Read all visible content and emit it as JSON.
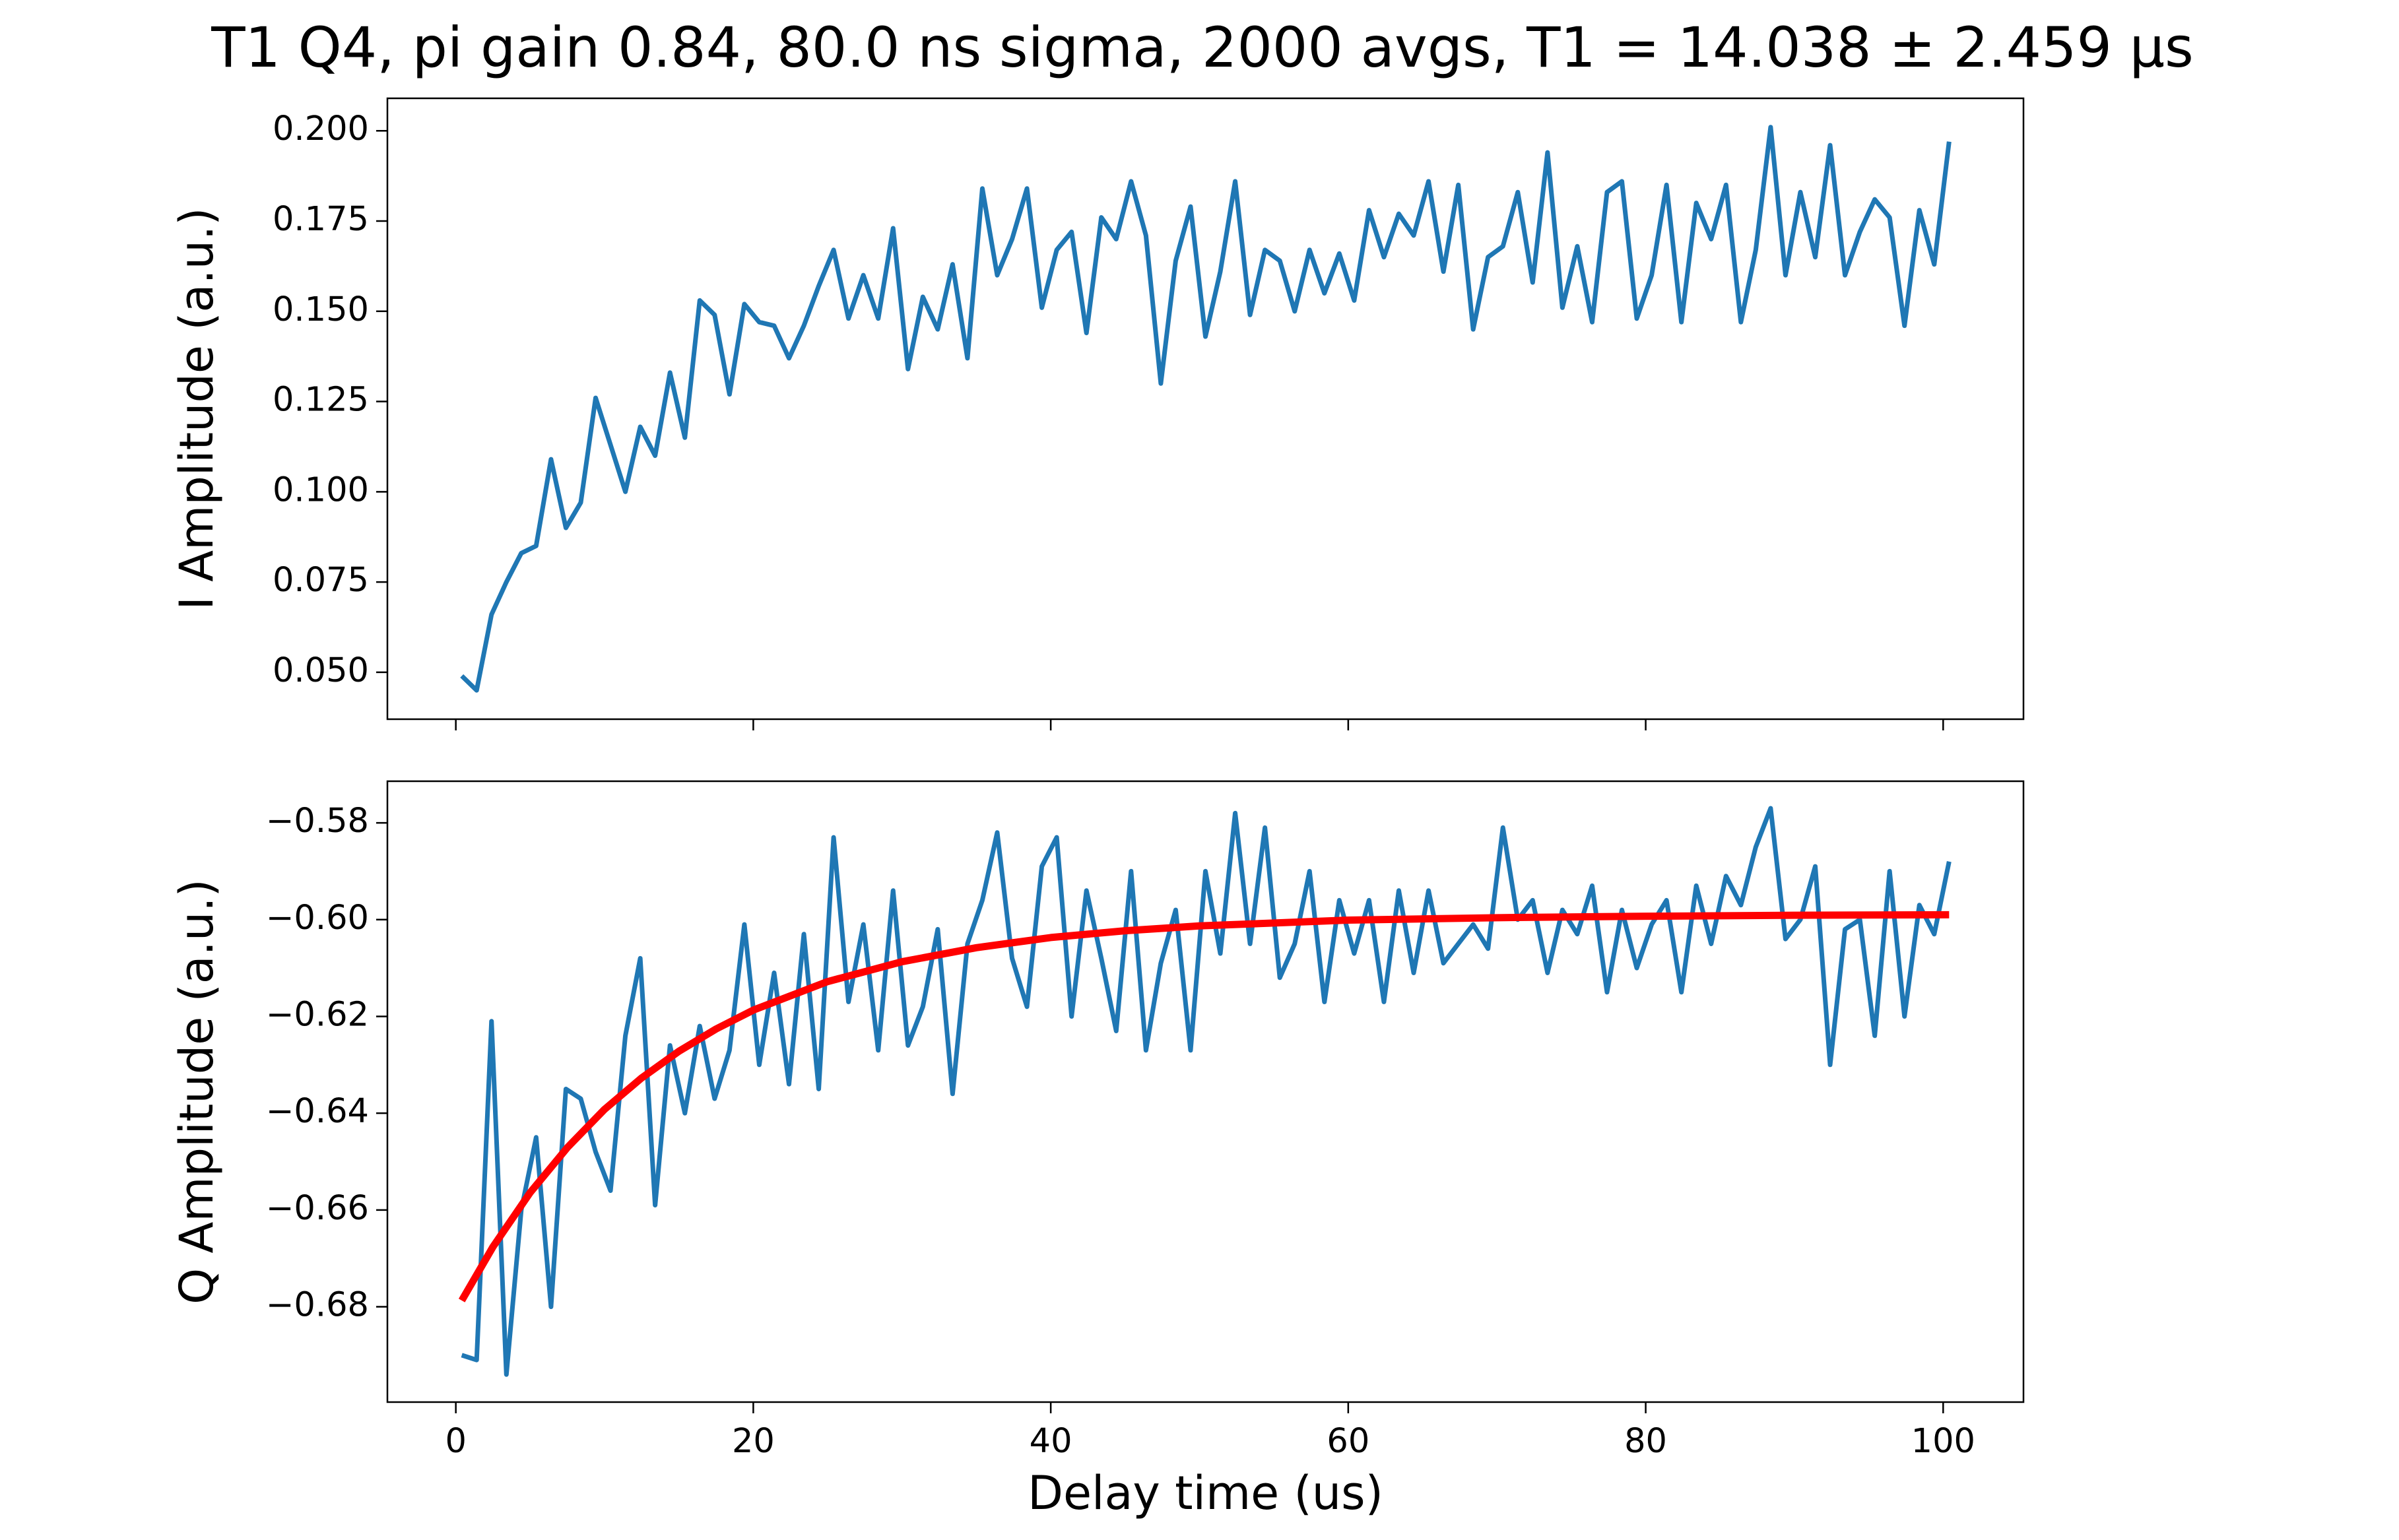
{
  "title": "T1 Q4, pi gain 0.84, 80.0 ns sigma, 2000 avgs, T1 = 14.038 ± 2.459 µs",
  "chart_data": [
    {
      "type": "line",
      "ylabel": "I Amplitude (a.u.)",
      "show_xtick_labels": false,
      "xlim": [
        -4.6,
        105.4
      ],
      "ylim": [
        0.037,
        0.209
      ],
      "xticks": [
        0,
        20,
        40,
        60,
        80,
        100
      ],
      "yticks": [
        {
          "value": 0.05,
          "label": "0.050"
        },
        {
          "value": 0.075,
          "label": "0.075"
        },
        {
          "value": 0.1,
          "label": "0.100"
        },
        {
          "value": 0.125,
          "label": "0.125"
        },
        {
          "value": 0.15,
          "label": "0.150"
        },
        {
          "value": 0.175,
          "label": "0.175"
        },
        {
          "value": 0.2,
          "label": "0.200"
        }
      ],
      "x": [
        0.4,
        1.4,
        2.4,
        3.4,
        4.4,
        5.4,
        6.4,
        7.4,
        8.4,
        9.4,
        10.4,
        11.4,
        12.4,
        13.4,
        14.4,
        15.4,
        16.4,
        17.4,
        18.4,
        19.4,
        20.4,
        21.4,
        22.4,
        23.4,
        24.4,
        25.4,
        26.4,
        27.4,
        28.4,
        29.4,
        30.4,
        31.4,
        32.4,
        33.4,
        34.4,
        35.4,
        36.4,
        37.4,
        38.4,
        39.4,
        40.4,
        41.4,
        42.4,
        43.4,
        44.4,
        45.4,
        46.4,
        47.4,
        48.4,
        49.4,
        50.4,
        51.4,
        52.4,
        53.4,
        54.4,
        55.4,
        56.4,
        57.4,
        58.4,
        59.4,
        60.4,
        61.4,
        62.4,
        63.4,
        64.4,
        65.4,
        66.4,
        67.4,
        68.4,
        69.4,
        70.4,
        71.4,
        72.4,
        73.4,
        74.4,
        75.4,
        76.4,
        77.4,
        78.4,
        79.4,
        80.4,
        81.4,
        82.4,
        83.4,
        84.4,
        85.4,
        86.4,
        87.4,
        88.4,
        89.4,
        90.4,
        91.4,
        92.4,
        93.4,
        94.4,
        95.4,
        96.4,
        97.4,
        98.4,
        99.4,
        100.4
      ],
      "series": [
        {
          "color": "#1f77b4",
          "width": 7,
          "values": [
            0.049,
            0.045,
            0.066,
            0.075,
            0.083,
            0.085,
            0.109,
            0.09,
            0.097,
            0.126,
            0.113,
            0.1,
            0.118,
            0.11,
            0.133,
            0.115,
            0.153,
            0.149,
            0.127,
            0.152,
            0.147,
            0.146,
            0.137,
            0.146,
            0.157,
            0.167,
            0.148,
            0.16,
            0.148,
            0.173,
            0.134,
            0.154,
            0.145,
            0.163,
            0.137,
            0.184,
            0.16,
            0.17,
            0.184,
            0.151,
            0.167,
            0.172,
            0.144,
            0.176,
            0.17,
            0.186,
            0.171,
            0.13,
            0.164,
            0.179,
            0.143,
            0.161,
            0.186,
            0.149,
            0.167,
            0.164,
            0.15,
            0.167,
            0.155,
            0.166,
            0.153,
            0.178,
            0.165,
            0.177,
            0.171,
            0.186,
            0.161,
            0.185,
            0.145,
            0.165,
            0.168,
            0.183,
            0.158,
            0.194,
            0.151,
            0.168,
            0.147,
            0.183,
            0.186,
            0.148,
            0.16,
            0.185,
            0.147,
            0.18,
            0.17,
            0.185,
            0.147,
            0.167,
            0.201,
            0.16,
            0.183,
            0.165,
            0.196,
            0.16,
            0.172,
            0.181,
            0.176,
            0.146,
            0.178,
            0.163,
            0.197
          ]
        }
      ]
    },
    {
      "type": "line",
      "ylabel": "Q Amplitude (a.u.)",
      "xlabel": "Delay time (us)",
      "show_xtick_labels": true,
      "xlim": [
        -4.6,
        105.4
      ],
      "ylim": [
        -0.6997,
        -0.5714
      ],
      "xticks": [
        0,
        20,
        40,
        60,
        80,
        100
      ],
      "yticks": [
        {
          "value": -0.68,
          "label": "−0.68"
        },
        {
          "value": -0.66,
          "label": "−0.66"
        },
        {
          "value": -0.64,
          "label": "−0.64"
        },
        {
          "value": -0.62,
          "label": "−0.62"
        },
        {
          "value": -0.6,
          "label": "−0.60"
        },
        {
          "value": -0.58,
          "label": "−0.58"
        }
      ],
      "x": [
        0.4,
        1.4,
        2.4,
        3.4,
        4.4,
        5.4,
        6.4,
        7.4,
        8.4,
        9.4,
        10.4,
        11.4,
        12.4,
        13.4,
        14.4,
        15.4,
        16.4,
        17.4,
        18.4,
        19.4,
        20.4,
        21.4,
        22.4,
        23.4,
        24.4,
        25.4,
        26.4,
        27.4,
        28.4,
        29.4,
        30.4,
        31.4,
        32.4,
        33.4,
        34.4,
        35.4,
        36.4,
        37.4,
        38.4,
        39.4,
        40.4,
        41.4,
        42.4,
        43.4,
        44.4,
        45.4,
        46.4,
        47.4,
        48.4,
        49.4,
        50.4,
        51.4,
        52.4,
        53.4,
        54.4,
        55.4,
        56.4,
        57.4,
        58.4,
        59.4,
        60.4,
        61.4,
        62.4,
        63.4,
        64.4,
        65.4,
        66.4,
        67.4,
        68.4,
        69.4,
        70.4,
        71.4,
        72.4,
        73.4,
        74.4,
        75.4,
        76.4,
        77.4,
        78.4,
        79.4,
        80.4,
        81.4,
        82.4,
        83.4,
        84.4,
        85.4,
        86.4,
        87.4,
        88.4,
        89.4,
        90.4,
        91.4,
        92.4,
        93.4,
        94.4,
        95.4,
        96.4,
        97.4,
        98.4,
        99.4,
        100.4
      ],
      "series": [
        {
          "color": "#1f77b4",
          "width": 7,
          "values": [
            -0.69,
            -0.691,
            -0.621,
            -0.694,
            -0.66,
            -0.645,
            -0.68,
            -0.635,
            -0.637,
            -0.648,
            -0.656,
            -0.624,
            -0.608,
            -0.659,
            -0.626,
            -0.64,
            -0.622,
            -0.637,
            -0.627,
            -0.601,
            -0.63,
            -0.611,
            -0.634,
            -0.603,
            -0.635,
            -0.583,
            -0.617,
            -0.601,
            -0.627,
            -0.594,
            -0.626,
            -0.618,
            -0.602,
            -0.636,
            -0.605,
            -0.596,
            -0.582,
            -0.608,
            -0.618,
            -0.589,
            -0.583,
            -0.62,
            -0.594,
            -0.608,
            -0.623,
            -0.59,
            -0.627,
            -0.609,
            -0.598,
            -0.627,
            -0.59,
            -0.607,
            -0.578,
            -0.605,
            -0.581,
            -0.612,
            -0.605,
            -0.59,
            -0.617,
            -0.596,
            -0.607,
            -0.596,
            -0.617,
            -0.594,
            -0.611,
            -0.594,
            -0.609,
            -0.605,
            -0.601,
            -0.606,
            -0.581,
            -0.6,
            -0.596,
            -0.611,
            -0.598,
            -0.603,
            -0.593,
            -0.615,
            -0.598,
            -0.61,
            -0.601,
            -0.596,
            -0.615,
            -0.593,
            -0.605,
            -0.591,
            -0.597,
            -0.585,
            -0.577,
            -0.604,
            -0.6,
            -0.589,
            -0.63,
            -0.602,
            -0.6,
            -0.624,
            -0.59,
            -0.62,
            -0.597,
            -0.603,
            -0.588
          ]
        },
        {
          "color": "#ff0000",
          "width": 11,
          "x": [
            0.4,
            2.5,
            5,
            7.5,
            10,
            12.5,
            15,
            17.5,
            20,
            25,
            30,
            35,
            40,
            45,
            50,
            60,
            70,
            80,
            90,
            100.4
          ],
          "values": [
            -0.6787,
            -0.6676,
            -0.6564,
            -0.6471,
            -0.6392,
            -0.6327,
            -0.6272,
            -0.6226,
            -0.6187,
            -0.6128,
            -0.6087,
            -0.6058,
            -0.6037,
            -0.6023,
            -0.6013,
            -0.6001,
            -0.5996,
            -0.5993,
            -0.5991,
            -0.599
          ]
        }
      ]
    }
  ]
}
